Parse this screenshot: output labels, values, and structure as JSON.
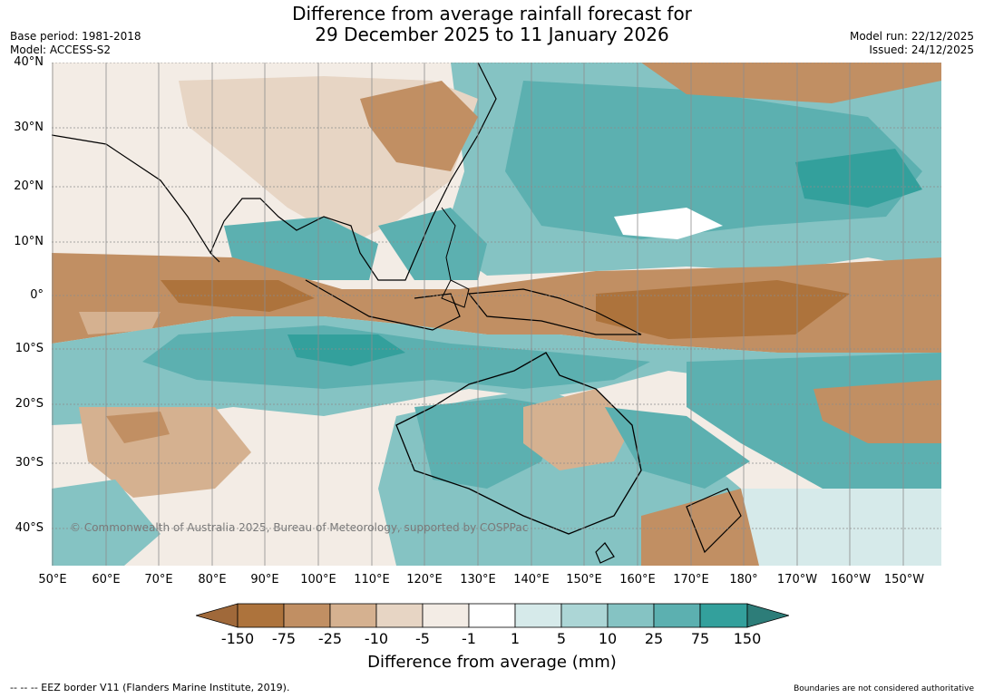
{
  "title_line1": "Difference from average rainfall forecast for",
  "title_line2": "29 December 2025 to 11 January 2026",
  "base_period": "Base period: 1981-2018",
  "model": "Model: ACCESS-S2",
  "model_run": "Model run: 22/12/2025",
  "issued": "Issued: 24/12/2025",
  "copyright": "© Commonwealth of Australia 2025, Bureau of Meteorology, supported by COSPPac",
  "lat_labels": [
    "40°N",
    "30°N",
    "20°N",
    "10°N",
    "0°",
    "10°S",
    "20°S",
    "30°S",
    "40°S"
  ],
  "lon_labels": [
    "50°E",
    "60°E",
    "70°E",
    "80°E",
    "90°E",
    "100°E",
    "110°E",
    "120°E",
    "130°E",
    "140°E",
    "150°E",
    "160°E",
    "170°E",
    "180°",
    "170°W",
    "160°W",
    "150°W"
  ],
  "colorbar": {
    "ticks": [
      "-150",
      "-75",
      "-25",
      "-10",
      "-5",
      "-1",
      "1",
      "5",
      "10",
      "25",
      "75",
      "150"
    ],
    "colors": [
      "#a0693a",
      "#ad733c",
      "#c18f63",
      "#d5b190",
      "#e7d5c4",
      "#f3ece5",
      "#ffffff",
      "#d6eaea",
      "#acd6d6",
      "#85c3c3",
      "#5cb0b0",
      "#33a09c",
      "#2d7d79"
    ],
    "label": "Difference from average (mm)"
  },
  "eez_note": "--  --  -- EEZ border V11 (Flanders Marine Institute, 2019).",
  "boundary_note": "Boundaries are not considered authoritative"
}
